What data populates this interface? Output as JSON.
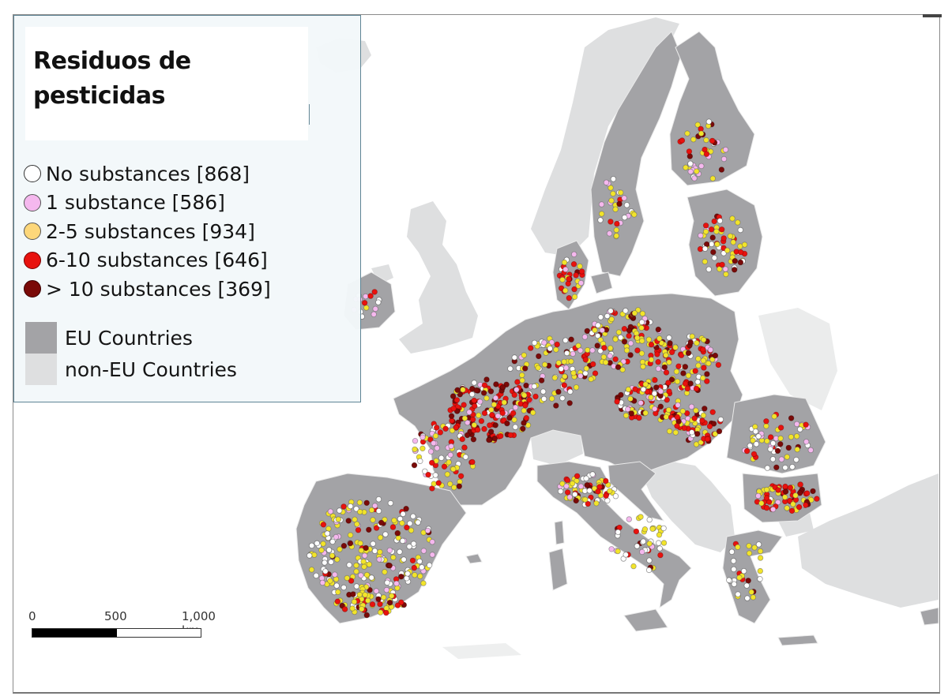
{
  "title": "Residuos de pesticidas",
  "title_lines": [
    "Residuos de",
    "pesticidas"
  ],
  "legend": {
    "categories": [
      {
        "label": "No substances [868]",
        "name": "No substances",
        "count": 868,
        "fill": "#ffffff",
        "stroke": "#333333"
      },
      {
        "label": "1 substance [586]",
        "name": "1 substance",
        "count": 586,
        "fill": "#f5b8ee",
        "stroke": "#555555"
      },
      {
        "label": "2-5 substances [934]",
        "name": "2-5 substances",
        "count": 934,
        "fill": "#fdd77a",
        "stroke": "#555555"
      },
      {
        "label": "6-10 substances [646]",
        "name": "6-10 substances",
        "count": 646,
        "fill": "#e8120e",
        "stroke": "#7a0000"
      },
      {
        "label": "> 10 substances [369]",
        "name": "> 10 substances",
        "count": 369,
        "fill": "#7a0a08",
        "stroke": "#3a0000"
      }
    ],
    "areas": [
      {
        "label": "EU Countries",
        "color": "#a3a3a6"
      },
      {
        "label": "non-EU Countries",
        "color": "#dedfe0"
      }
    ]
  },
  "scale_bar": {
    "labels": [
      "0",
      "500",
      "1,000 km"
    ],
    "unit": "km",
    "max": 1000
  },
  "colors": {
    "eu_land": "#a3a3a6",
    "non_eu_land": "#dedfe0",
    "sea": "#ffffff",
    "legend_border": "#5f8595",
    "legend_bg": "#f3f8fa"
  }
}
